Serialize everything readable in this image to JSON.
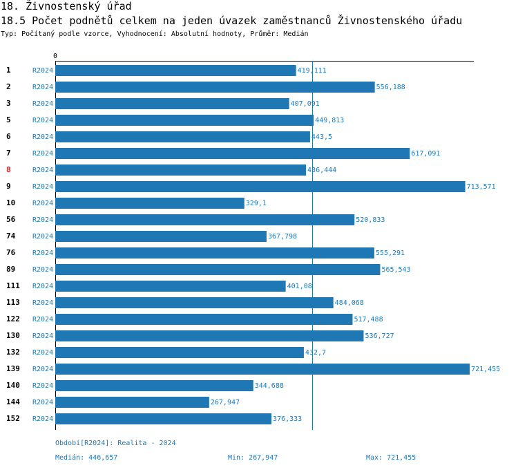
{
  "header": {
    "section": "18. Živnostenský úřad",
    "subsection": "18.5 Počet podnětů celkem na jeden úvazek zaměstnanců Živnostenského úřadu",
    "meta": "Typ: Počítaný podle vzorce, Vyhodnocení: Absolutní hodnoty, Průměr: Medián"
  },
  "colors": {
    "bar": "#1f77b4",
    "highlight": "#e41a1c",
    "text": "#000000"
  },
  "chart_data": {
    "type": "bar",
    "orientation": "horizontal",
    "x_tick_label": "0",
    "xlim": [
      0,
      721.455
    ],
    "series_label": "R2024",
    "highlight_id": "8",
    "reference_line": {
      "name": "Medián",
      "value": 446.657
    },
    "rows": [
      {
        "id": "1",
        "series": "R2024",
        "value": 419.111,
        "label": "419,111"
      },
      {
        "id": "2",
        "series": "R2024",
        "value": 556.188,
        "label": "556,188"
      },
      {
        "id": "3",
        "series": "R2024",
        "value": 407.091,
        "label": "407,091"
      },
      {
        "id": "5",
        "series": "R2024",
        "value": 449.813,
        "label": "449,813"
      },
      {
        "id": "6",
        "series": "R2024",
        "value": 443.5,
        "label": "443,5"
      },
      {
        "id": "7",
        "series": "R2024",
        "value": 617.091,
        "label": "617,091"
      },
      {
        "id": "8",
        "series": "R2024",
        "value": 436.444,
        "label": "436,444"
      },
      {
        "id": "9",
        "series": "R2024",
        "value": 713.571,
        "label": "713,571"
      },
      {
        "id": "10",
        "series": "R2024",
        "value": 329.1,
        "label": "329,1"
      },
      {
        "id": "56",
        "series": "R2024",
        "value": 520.833,
        "label": "520,833"
      },
      {
        "id": "74",
        "series": "R2024",
        "value": 367.798,
        "label": "367,798"
      },
      {
        "id": "76",
        "series": "R2024",
        "value": 555.291,
        "label": "555,291"
      },
      {
        "id": "89",
        "series": "R2024",
        "value": 565.543,
        "label": "565,543"
      },
      {
        "id": "111",
        "series": "R2024",
        "value": 401.08,
        "label": "401,08"
      },
      {
        "id": "113",
        "series": "R2024",
        "value": 484.068,
        "label": "484,068"
      },
      {
        "id": "122",
        "series": "R2024",
        "value": 517.488,
        "label": "517,488"
      },
      {
        "id": "130",
        "series": "R2024",
        "value": 536.727,
        "label": "536,727"
      },
      {
        "id": "132",
        "series": "R2024",
        "value": 432.7,
        "label": "432,7"
      },
      {
        "id": "139",
        "series": "R2024",
        "value": 721.455,
        "label": "721,455"
      },
      {
        "id": "140",
        "series": "R2024",
        "value": 344.688,
        "label": "344,688"
      },
      {
        "id": "144",
        "series": "R2024",
        "value": 267.947,
        "label": "267,947"
      },
      {
        "id": "152",
        "series": "R2024",
        "value": 376.333,
        "label": "376,333"
      }
    ]
  },
  "footer": {
    "period": "Období[R2024]: Realita - 2024",
    "median": "Medián: 446,657",
    "min": "Min: 267,947",
    "max": "Max: 721,455"
  }
}
